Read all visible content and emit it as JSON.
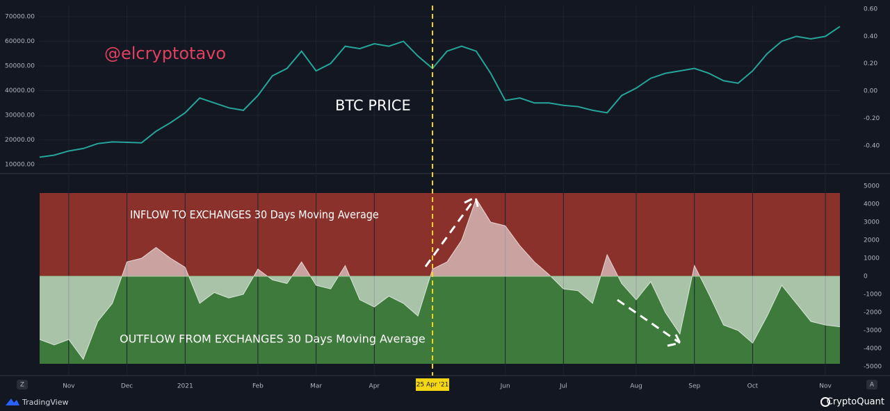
{
  "chart_data": [
    {
      "type": "line",
      "title": "BTC PRICE",
      "watermark": "@elcryptotavo",
      "color": "#26a69a",
      "values": [
        13000,
        13800,
        15500,
        16500,
        18500,
        19200,
        19000,
        18800,
        23500,
        27000,
        31000,
        37000,
        35000,
        33000,
        32000,
        38000,
        46000,
        49000,
        56000,
        48000,
        51000,
        58000,
        57000,
        59000,
        58000,
        60000,
        54000,
        49000,
        56000,
        58000,
        56000,
        47000,
        36000,
        37000,
        35000,
        35000,
        34000,
        33500,
        32000,
        31000,
        38000,
        41000,
        45000,
        47000,
        48000,
        49000,
        47000,
        44000,
        43000,
        48000,
        55000,
        60000,
        62000,
        61000,
        62000,
        66000
      ],
      "ylim": [
        6900,
        74500
      ],
      "yticks": [
        {
          "value": 70000,
          "label": "70000.00"
        },
        {
          "value": 60000,
          "label": "60000.00"
        },
        {
          "value": 50000,
          "label": "50000.00"
        },
        {
          "value": 40000,
          "label": "40000.00"
        },
        {
          "value": 30000,
          "label": "30000.00"
        },
        {
          "value": 20000,
          "label": "20000.00"
        },
        {
          "value": 10000,
          "label": "10000.00"
        }
      ],
      "y2lim": [
        -0.593,
        0.625
      ],
      "y2ticks": [
        {
          "value": 0.6,
          "label": "0.60"
        },
        {
          "value": 0.4,
          "label": "0.40"
        },
        {
          "value": 0.2,
          "label": "0.20"
        },
        {
          "value": 0,
          "label": "0.00"
        },
        {
          "value": -0.2,
          "label": "-0.20"
        },
        {
          "value": -0.4,
          "label": "-0.40"
        }
      ]
    },
    {
      "type": "area",
      "inflow_label": "INFLOW TO EXCHANGES 30 Days Moving Average",
      "outflow_label": "OUTFLOW FROM EXCHANGES 30 Days Moving Average",
      "categories": [
        null,
        null,
        "Nov",
        null,
        null,
        null,
        "Dec",
        null,
        null,
        null,
        "2021",
        null,
        null,
        null,
        null,
        "Feb",
        null,
        null,
        null,
        "Mar",
        null,
        null,
        null,
        "Apr",
        null,
        null,
        null,
        "25 Apr '21",
        null,
        null,
        null,
        null,
        "Jun",
        null,
        null,
        null,
        "Jul",
        null,
        null,
        null,
        null,
        "Aug",
        null,
        null,
        null,
        "Sep",
        null,
        null,
        null,
        "Oct",
        null,
        null,
        null,
        null,
        "Nov",
        null
      ],
      "highlight": "25 Apr '21",
      "values": [
        -3500,
        -3800,
        -3500,
        -4600,
        -2500,
        -1500,
        800,
        1000,
        1600,
        1000,
        500,
        -1500,
        -900,
        -1200,
        -1000,
        400,
        -200,
        -400,
        800,
        -500,
        -700,
        600,
        -1300,
        -1700,
        -1100,
        -1500,
        -2200,
        400,
        800,
        2000,
        4300,
        3000,
        2800,
        1700,
        800,
        100,
        -700,
        -800,
        -1500,
        1200,
        -400,
        -1300,
        -300,
        -2000,
        -3200,
        600,
        -1000,
        -2700,
        -3000,
        -3700,
        -2200,
        -500,
        -1500,
        -2500,
        -2700,
        -2800
      ],
      "ylim": [
        -5462,
        5385
      ],
      "yticks": [
        5000,
        4000,
        3000,
        2000,
        1000,
        0,
        -1000,
        -2000,
        -3000,
        -4000,
        -5000
      ]
    }
  ],
  "footer": {
    "left": "TradingView",
    "right": "CryptoQuant",
    "left_button": "Z",
    "right_button": "A"
  }
}
